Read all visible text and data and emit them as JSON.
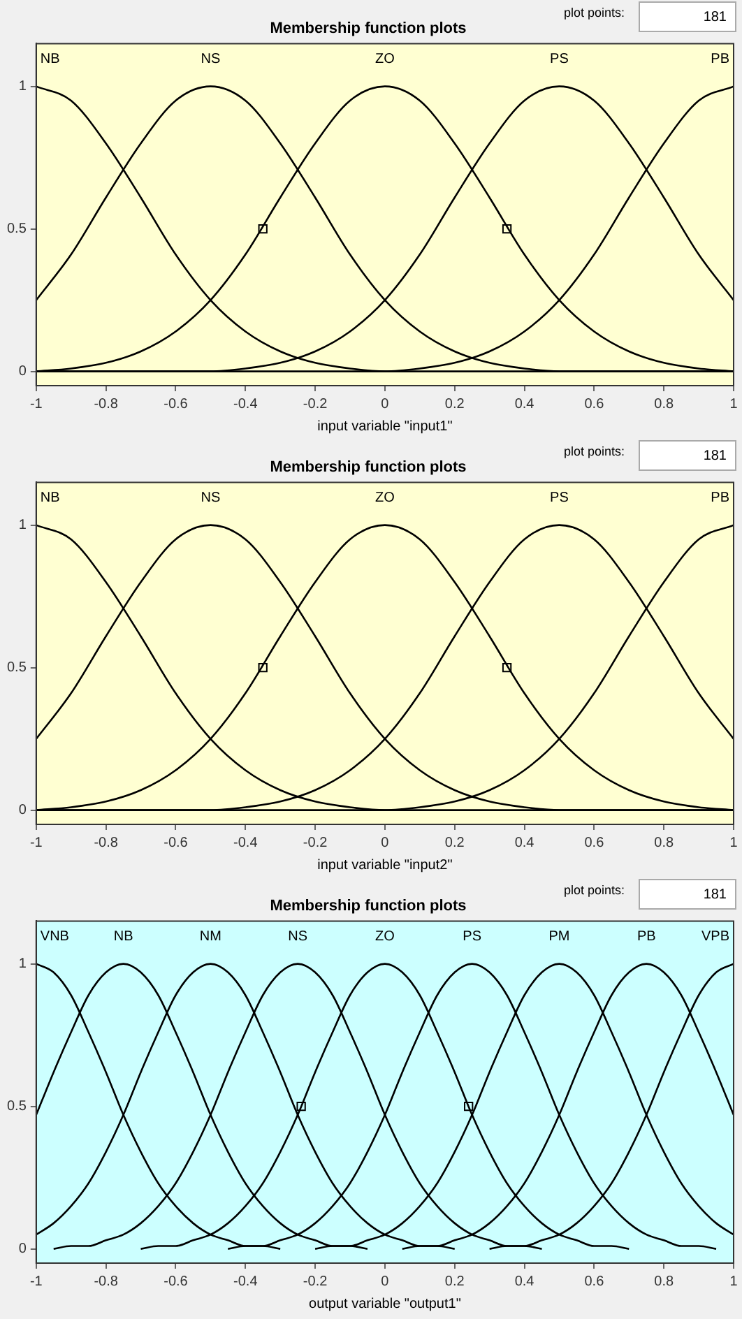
{
  "chart_data": [
    {
      "type": "line",
      "title": "Membership function plots",
      "xlabel": "input variable \"input1\"",
      "annotations": [
        "plot points:",
        "181"
      ],
      "x": [
        -1,
        -0.9,
        -0.8,
        -0.7,
        -0.6,
        -0.5,
        -0.4,
        -0.3,
        -0.2,
        -0.1,
        0,
        0.1,
        0.2,
        0.3,
        0.4,
        0.5,
        0.6,
        0.7,
        0.8,
        0.9,
        1
      ],
      "series": [
        {
          "name": "NB",
          "color": "#000000",
          "values": [
            1,
            0.95,
            0.8,
            0.61,
            0.41,
            0.25,
            0.14,
            0.07,
            0.03,
            0.01,
            0,
            0,
            0,
            0,
            0,
            0,
            0,
            0,
            0,
            0,
            0
          ]
        },
        {
          "name": "NS",
          "color": "#000000",
          "values": [
            0.25,
            0.41,
            0.61,
            0.8,
            0.95,
            1,
            0.95,
            0.8,
            0.61,
            0.41,
            0.25,
            0.14,
            0.07,
            0.03,
            0.01,
            0,
            0,
            0,
            0,
            0,
            0
          ]
        },
        {
          "name": "ZO",
          "color": "#000000",
          "values": [
            0,
            0.01,
            0.03,
            0.07,
            0.14,
            0.25,
            0.41,
            0.61,
            0.8,
            0.95,
            1,
            0.95,
            0.8,
            0.61,
            0.41,
            0.25,
            0.14,
            0.07,
            0.03,
            0.01,
            0
          ]
        },
        {
          "name": "PS",
          "color": "#000000",
          "values": [
            0,
            0,
            0,
            0,
            0,
            0,
            0.01,
            0.03,
            0.07,
            0.14,
            0.25,
            0.41,
            0.61,
            0.8,
            0.95,
            1,
            0.95,
            0.8,
            0.61,
            0.41,
            0.25
          ]
        },
        {
          "name": "PB",
          "color": "#000000",
          "values": [
            0,
            0,
            0,
            0,
            0,
            0,
            0,
            0,
            0,
            0,
            0,
            0.01,
            0.03,
            0.07,
            0.14,
            0.25,
            0.41,
            0.61,
            0.8,
            0.95,
            1
          ]
        },
        {
          "type": "scatter",
          "marker": "square",
          "color": "#000000",
          "x": [
            -0.35,
            0.35
          ],
          "values": [
            0.5,
            0.5
          ]
        }
      ],
      "xlim": [
        -1,
        1
      ],
      "ylim": [
        -0.05,
        1.15
      ],
      "xticks": [
        -1,
        -0.8,
        -0.6,
        -0.4,
        -0.2,
        0,
        0.2,
        0.4,
        0.6,
        0.8,
        1
      ],
      "yticks": [
        0,
        0.5,
        1
      ],
      "marker": "none"
    },
    {
      "type": "line",
      "title": "Membership function plots",
      "xlabel": "input variable \"input2\"",
      "annotations": [
        "plot points:",
        "181"
      ],
      "x": [
        -1,
        -0.9,
        -0.8,
        -0.7,
        -0.6,
        -0.5,
        -0.4,
        -0.3,
        -0.2,
        -0.1,
        0,
        0.1,
        0.2,
        0.3,
        0.4,
        0.5,
        0.6,
        0.7,
        0.8,
        0.9,
        1
      ],
      "series": [
        {
          "name": "NB",
          "color": "#000000",
          "values": [
            1,
            0.95,
            0.8,
            0.61,
            0.41,
            0.25,
            0.14,
            0.07,
            0.03,
            0.01,
            0,
            0,
            0,
            0,
            0,
            0,
            0,
            0,
            0,
            0,
            0
          ]
        },
        {
          "name": "NS",
          "color": "#000000",
          "values": [
            0.25,
            0.41,
            0.61,
            0.8,
            0.95,
            1,
            0.95,
            0.8,
            0.61,
            0.41,
            0.25,
            0.14,
            0.07,
            0.03,
            0.01,
            0,
            0,
            0,
            0,
            0,
            0
          ]
        },
        {
          "name": "ZO",
          "color": "#000000",
          "values": [
            0,
            0.01,
            0.03,
            0.07,
            0.14,
            0.25,
            0.41,
            0.61,
            0.8,
            0.95,
            1,
            0.95,
            0.8,
            0.61,
            0.41,
            0.25,
            0.14,
            0.07,
            0.03,
            0.01,
            0
          ]
        },
        {
          "name": "PS",
          "color": "#000000",
          "values": [
            0,
            0,
            0,
            0,
            0,
            0,
            0.01,
            0.03,
            0.07,
            0.14,
            0.25,
            0.41,
            0.61,
            0.8,
            0.95,
            1,
            0.95,
            0.8,
            0.61,
            0.41,
            0.25
          ]
        },
        {
          "name": "PB",
          "color": "#000000",
          "values": [
            0,
            0,
            0,
            0,
            0,
            0,
            0,
            0,
            0,
            0,
            0,
            0.01,
            0.03,
            0.07,
            0.14,
            0.25,
            0.41,
            0.61,
            0.8,
            0.95,
            1
          ]
        },
        {
          "type": "scatter",
          "marker": "square",
          "color": "#000000",
          "x": [
            -0.35,
            0.35
          ],
          "values": [
            0.5,
            0.5
          ]
        }
      ],
      "xlim": [
        -1,
        1
      ],
      "ylim": [
        -0.05,
        1.15
      ],
      "xticks": [
        -1,
        -0.8,
        -0.6,
        -0.4,
        -0.2,
        0,
        0.2,
        0.4,
        0.6,
        0.8,
        1
      ],
      "yticks": [
        0,
        0.5,
        1
      ],
      "marker": "none"
    },
    {
      "type": "line",
      "title": "Membership function plots",
      "xlabel": "output variable \"output1\"",
      "annotations": [
        "plot points:",
        "181"
      ],
      "series": [
        {
          "name": "VNB",
          "color": "#000000",
          "x": [
            -1,
            -0.95,
            -0.9,
            -0.85,
            -0.8,
            -0.75,
            -0.7,
            -0.65,
            -0.6,
            -0.55,
            -0.5,
            -0.45,
            -0.4,
            -0.35,
            -0.3
          ],
          "values": [
            1,
            0.97,
            0.89,
            0.76,
            0.62,
            0.47,
            0.34,
            0.23,
            0.15,
            0.09,
            0.05,
            0.03,
            0.01,
            0.01,
            0
          ]
        },
        {
          "name": "NB",
          "color": "#000000",
          "x": [
            -1,
            -0.95,
            -0.9,
            -0.85,
            -0.8,
            -0.75,
            -0.7,
            -0.65,
            -0.6,
            -0.55,
            -0.5,
            -0.45,
            -0.4,
            -0.35,
            -0.3,
            -0.25,
            -0.2,
            -0.15,
            -0.1,
            -0.05
          ],
          "values": [
            0.47,
            0.62,
            0.76,
            0.89,
            0.97,
            1,
            0.97,
            0.89,
            0.76,
            0.62,
            0.47,
            0.34,
            0.23,
            0.15,
            0.09,
            0.05,
            0.03,
            0.01,
            0.01,
            0
          ]
        },
        {
          "name": "NM",
          "color": "#000000",
          "x": [
            -1,
            -0.95,
            -0.9,
            -0.85,
            -0.8,
            -0.75,
            -0.7,
            -0.65,
            -0.6,
            -0.55,
            -0.5,
            -0.45,
            -0.4,
            -0.35,
            -0.3,
            -0.25,
            -0.2,
            -0.15,
            -0.1,
            -0.05,
            0,
            0.05,
            0.1,
            0.15,
            0.2
          ],
          "values": [
            0.05,
            0.09,
            0.15,
            0.23,
            0.34,
            0.47,
            0.62,
            0.76,
            0.89,
            0.97,
            1,
            0.97,
            0.89,
            0.76,
            0.62,
            0.47,
            0.34,
            0.23,
            0.15,
            0.09,
            0.05,
            0.03,
            0.01,
            0.01,
            0
          ]
        },
        {
          "name": "NS",
          "color": "#000000",
          "x": [
            -0.95,
            -0.9,
            -0.85,
            -0.8,
            -0.75,
            -0.7,
            -0.65,
            -0.6,
            -0.55,
            -0.5,
            -0.45,
            -0.4,
            -0.35,
            -0.3,
            -0.25,
            -0.2,
            -0.15,
            -0.1,
            -0.05,
            0,
            0.05,
            0.1,
            0.15,
            0.2,
            0.25,
            0.3,
            0.35,
            0.4,
            0.45
          ],
          "values": [
            0,
            0.01,
            0.01,
            0.03,
            0.05,
            0.09,
            0.15,
            0.23,
            0.34,
            0.47,
            0.62,
            0.76,
            0.89,
            0.97,
            1,
            0.97,
            0.89,
            0.76,
            0.62,
            0.47,
            0.34,
            0.23,
            0.15,
            0.09,
            0.05,
            0.03,
            0.01,
            0.01,
            0
          ]
        },
        {
          "name": "ZO",
          "color": "#000000",
          "x": [
            -0.7,
            -0.65,
            -0.6,
            -0.55,
            -0.5,
            -0.45,
            -0.4,
            -0.35,
            -0.3,
            -0.25,
            -0.2,
            -0.15,
            -0.1,
            -0.05,
            0,
            0.05,
            0.1,
            0.15,
            0.2,
            0.25,
            0.3,
            0.35,
            0.4,
            0.45,
            0.5,
            0.55,
            0.6,
            0.65,
            0.7
          ],
          "values": [
            0,
            0.01,
            0.01,
            0.03,
            0.05,
            0.09,
            0.15,
            0.23,
            0.34,
            0.47,
            0.62,
            0.76,
            0.89,
            0.97,
            1,
            0.97,
            0.89,
            0.76,
            0.62,
            0.47,
            0.34,
            0.23,
            0.15,
            0.09,
            0.05,
            0.03,
            0.01,
            0.01,
            0
          ]
        },
        {
          "name": "PS",
          "color": "#000000",
          "x": [
            -0.45,
            -0.4,
            -0.35,
            -0.3,
            -0.25,
            -0.2,
            -0.15,
            -0.1,
            -0.05,
            0,
            0.05,
            0.1,
            0.15,
            0.2,
            0.25,
            0.3,
            0.35,
            0.4,
            0.45,
            0.5,
            0.55,
            0.6,
            0.65,
            0.7,
            0.75,
            0.8,
            0.85,
            0.9,
            0.95
          ],
          "values": [
            0,
            0.01,
            0.01,
            0.03,
            0.05,
            0.09,
            0.15,
            0.23,
            0.34,
            0.47,
            0.62,
            0.76,
            0.89,
            0.97,
            1,
            0.97,
            0.89,
            0.76,
            0.62,
            0.47,
            0.34,
            0.23,
            0.15,
            0.09,
            0.05,
            0.03,
            0.01,
            0.01,
            0
          ]
        },
        {
          "name": "PM",
          "color": "#000000",
          "x": [
            -0.2,
            -0.15,
            -0.1,
            -0.05,
            0,
            0.05,
            0.1,
            0.15,
            0.2,
            0.25,
            0.3,
            0.35,
            0.4,
            0.45,
            0.5,
            0.55,
            0.6,
            0.65,
            0.7,
            0.75,
            0.8,
            0.85,
            0.9,
            0.95,
            1
          ],
          "values": [
            0,
            0.01,
            0.01,
            0.03,
            0.05,
            0.09,
            0.15,
            0.23,
            0.34,
            0.47,
            0.62,
            0.76,
            0.89,
            0.97,
            1,
            0.97,
            0.89,
            0.76,
            0.62,
            0.47,
            0.34,
            0.23,
            0.15,
            0.09,
            0.05
          ]
        },
        {
          "name": "PB",
          "color": "#000000",
          "x": [
            0.05,
            0.1,
            0.15,
            0.2,
            0.25,
            0.3,
            0.35,
            0.4,
            0.45,
            0.5,
            0.55,
            0.6,
            0.65,
            0.7,
            0.75,
            0.8,
            0.85,
            0.9,
            0.95,
            1
          ],
          "values": [
            0,
            0.01,
            0.01,
            0.03,
            0.05,
            0.09,
            0.15,
            0.23,
            0.34,
            0.47,
            0.62,
            0.76,
            0.89,
            0.97,
            1,
            0.97,
            0.89,
            0.76,
            0.62,
            0.47
          ]
        },
        {
          "name": "VPB",
          "color": "#000000",
          "x": [
            0.3,
            0.35,
            0.4,
            0.45,
            0.5,
            0.55,
            0.6,
            0.65,
            0.7,
            0.75,
            0.8,
            0.85,
            0.9,
            0.95,
            1
          ],
          "values": [
            0,
            0.01,
            0.01,
            0.03,
            0.05,
            0.09,
            0.15,
            0.23,
            0.34,
            0.47,
            0.62,
            0.76,
            0.89,
            0.97,
            1
          ]
        },
        {
          "type": "scatter",
          "marker": "square",
          "color": "#000000",
          "x": [
            -0.24,
            0.24
          ],
          "values": [
            0.5,
            0.5
          ]
        }
      ],
      "xlim": [
        -1,
        1
      ],
      "ylim": [
        -0.05,
        1.15
      ],
      "xticks": [
        -1,
        -0.8,
        -0.6,
        -0.4,
        -0.2,
        0,
        0.2,
        0.4,
        0.6,
        0.8,
        1
      ],
      "yticks": [
        0,
        0.5,
        1
      ],
      "marker": "none"
    }
  ]
}
